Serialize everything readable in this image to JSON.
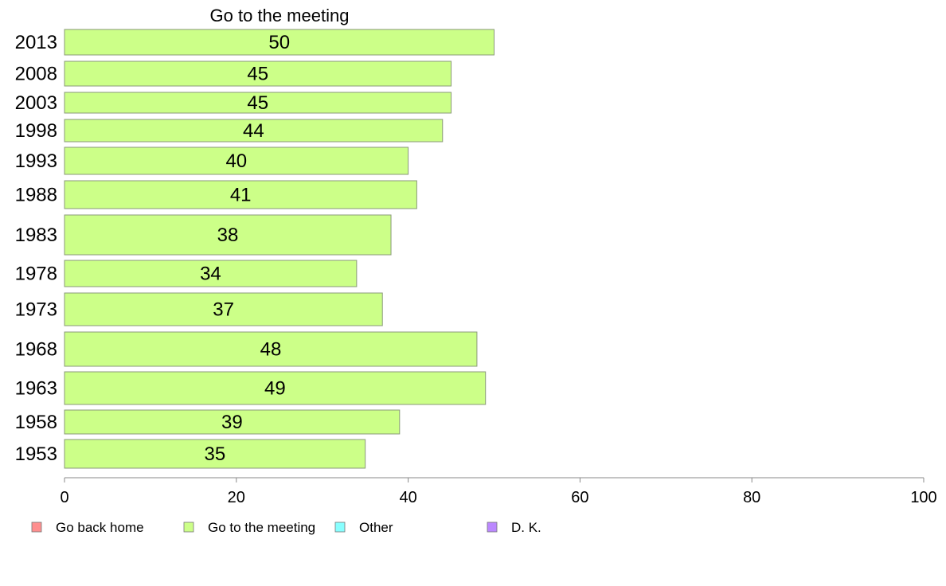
{
  "chart_data": {
    "type": "bar",
    "orientation": "horizontal",
    "title": "Go to the meeting",
    "categories": [
      "2013",
      "2008",
      "2003",
      "1998",
      "1993",
      "1988",
      "1983",
      "1978",
      "1973",
      "1968",
      "1963",
      "1958",
      "1953"
    ],
    "series": [
      {
        "name": "Go to the meeting",
        "color": "#ccff88",
        "values": [
          50,
          45,
          45,
          44,
          40,
          41,
          38,
          34,
          37,
          48,
          49,
          39,
          35
        ]
      }
    ],
    "xlim": [
      0,
      100
    ],
    "xticks": [
      0,
      20,
      40,
      60,
      80,
      100
    ],
    "grid": false,
    "legend": {
      "position": "bottom",
      "entries": [
        {
          "label": "Go back home",
          "color": "#ff8f8f"
        },
        {
          "label": "Go to the meeting",
          "color": "#ccff88"
        },
        {
          "label": "Other",
          "color": "#88ffff"
        },
        {
          "label": "D. K.",
          "color": "#bb88ff"
        }
      ]
    }
  }
}
